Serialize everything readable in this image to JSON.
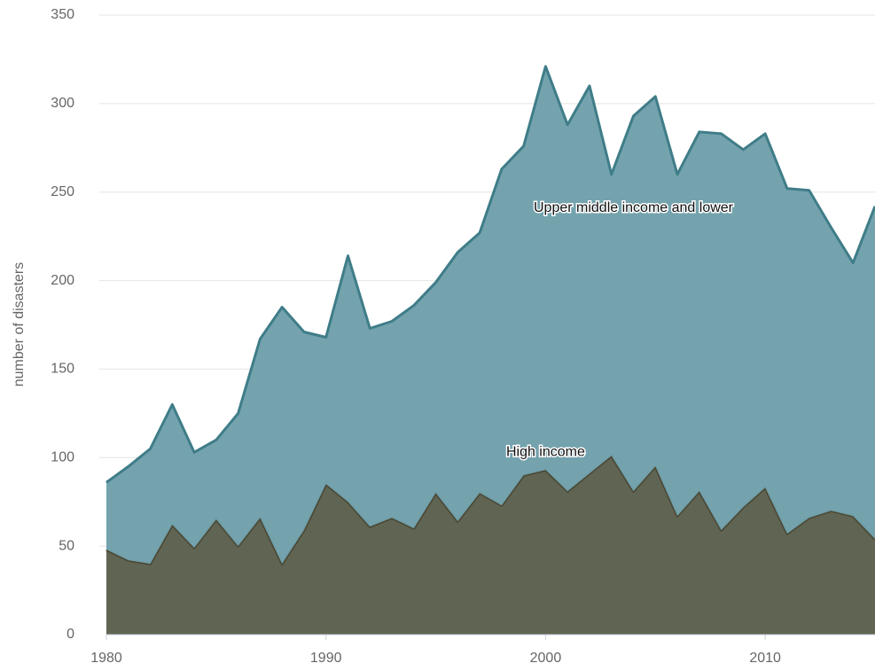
{
  "chart_data": {
    "type": "stacked-area",
    "ylabel": "number of disasters",
    "x": [
      1980,
      1981,
      1982,
      1983,
      1984,
      1985,
      1986,
      1987,
      1988,
      1989,
      1990,
      1991,
      1992,
      1993,
      1994,
      1995,
      1996,
      1997,
      1998,
      1999,
      2000,
      2001,
      2002,
      2003,
      2004,
      2005,
      2006,
      2007,
      2008,
      2009,
      2010,
      2011,
      2012,
      2013,
      2014,
      2015
    ],
    "series": [
      {
        "name": "High income",
        "color": "#5b5f4c",
        "line_color": "#4a4632",
        "values": [
          48,
          42,
          40,
          62,
          49,
          65,
          50,
          66,
          40,
          59,
          85,
          75,
          61,
          66,
          60,
          80,
          64,
          80,
          73,
          90,
          93,
          81,
          91,
          101,
          81,
          95,
          67,
          81,
          59,
          72,
          83,
          57,
          66,
          70,
          67,
          54
        ]
      },
      {
        "name": "Upper middle income and lower",
        "color": "#6fa0ab",
        "line_color": "#3f7d88",
        "values": [
          38,
          53,
          65,
          68,
          54,
          45,
          75,
          101,
          145,
          112,
          83,
          139,
          112,
          111,
          126,
          119,
          152,
          147,
          190,
          186,
          228,
          207,
          219,
          159,
          212,
          209,
          193,
          203,
          224,
          202,
          200,
          195,
          185,
          160,
          143,
          188
        ]
      }
    ],
    "xlim": [
      1980,
      2015
    ],
    "xticks": [
      1980,
      1990,
      2000,
      2010
    ],
    "ylim": [
      0,
      350
    ],
    "yticks": [
      0,
      50,
      100,
      150,
      200,
      250,
      300,
      350
    ],
    "grid": true
  }
}
